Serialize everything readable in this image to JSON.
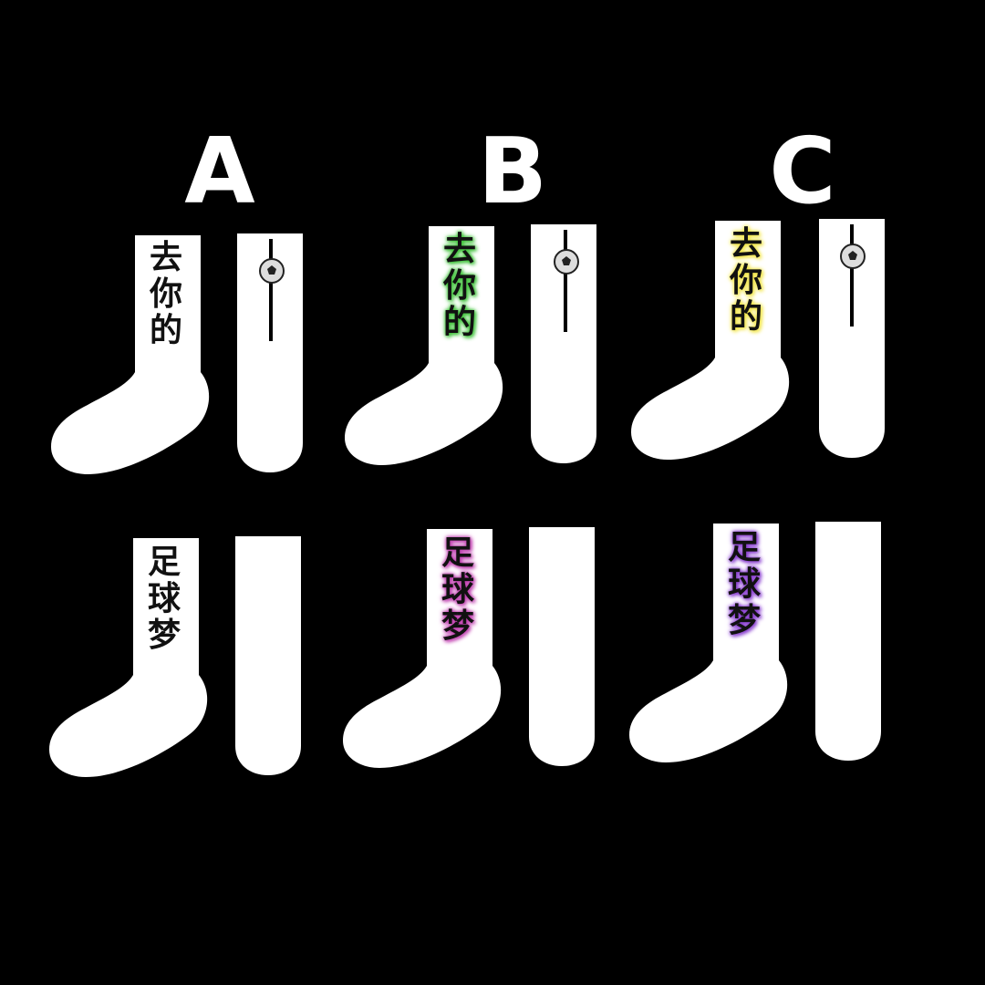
{
  "variants": [
    {
      "letter": "A",
      "top_glow": "#ffffff",
      "bottom_glow": "#ffffff"
    },
    {
      "letter": "B",
      "top_glow": "#3fc23a",
      "bottom_glow": "#c03fb0"
    },
    {
      "letter": "C",
      "top_glow": "#f2e64a",
      "bottom_glow": "#8a3fd0"
    }
  ],
  "top_text": [
    "去",
    "你",
    "的"
  ],
  "bottom_text": [
    "足",
    "球",
    "梦"
  ],
  "colors": {
    "background": "#000000",
    "sock": "#ffffff",
    "ink": "#111111",
    "stripe": "#000000"
  },
  "icons": {
    "ball": "soccer-ball-icon"
  }
}
